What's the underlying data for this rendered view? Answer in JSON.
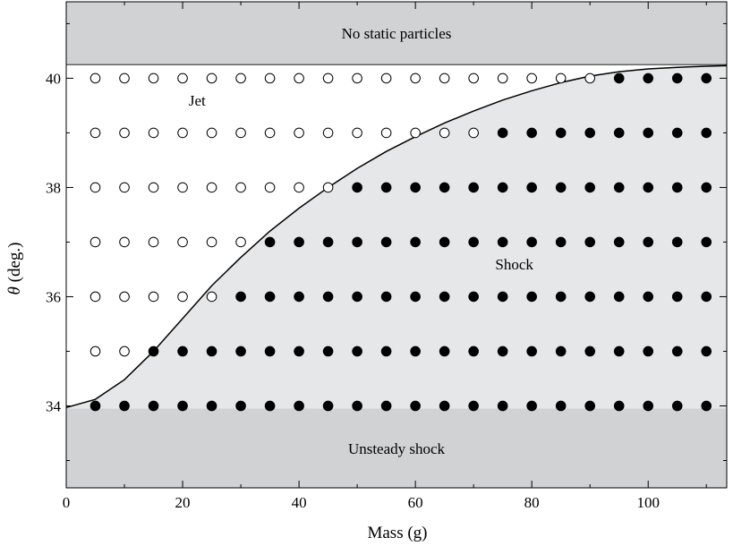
{
  "chart_data": {
    "type": "scatter",
    "title": "",
    "xlabel": "Mass (g)",
    "ylabel_symbol": "θ",
    "ylabel_rest": " (deg.)",
    "xlim": [
      0,
      113.5
    ],
    "ylim": [
      32.5,
      41.4
    ],
    "xticks": [
      0,
      20,
      40,
      60,
      80,
      100
    ],
    "yticks": [
      34,
      36,
      38,
      40
    ],
    "minor_xticks": [
      10,
      30,
      50,
      70,
      90,
      110
    ],
    "minor_yticks": [
      33,
      35,
      37,
      39,
      41
    ],
    "regions": [
      {
        "name": "No static particles",
        "ymin": 40.25,
        "ymax": 41.4,
        "color": "#d1d2d4"
      },
      {
        "name": "Unsteady shock",
        "ymin": 32.5,
        "ymax": 33.95,
        "color": "#d1d2d4"
      }
    ],
    "annotations": [
      {
        "text": "Jet",
        "x": 22.5,
        "y": 39.6
      },
      {
        "text": "Shock",
        "x": 77,
        "y": 36.6
      }
    ],
    "boundary_curve": {
      "description": "Jet/shock transition",
      "points": [
        [
          0,
          33.97
        ],
        [
          5,
          34.12
        ],
        [
          10,
          34.48
        ],
        [
          15,
          35.0
        ],
        [
          20,
          35.6
        ],
        [
          25,
          36.2
        ],
        [
          30,
          36.72
        ],
        [
          35,
          37.2
        ],
        [
          40,
          37.62
        ],
        [
          45,
          38.0
        ],
        [
          50,
          38.35
        ],
        [
          55,
          38.66
        ],
        [
          60,
          38.93
        ],
        [
          65,
          39.18
        ],
        [
          70,
          39.4
        ],
        [
          75,
          39.6
        ],
        [
          80,
          39.77
        ],
        [
          85,
          39.92
        ],
        [
          90,
          40.04
        ],
        [
          95,
          40.12
        ],
        [
          100,
          40.17
        ],
        [
          105,
          40.2
        ],
        [
          110,
          40.22
        ],
        [
          113.5,
          40.23
        ]
      ]
    },
    "series": [
      {
        "name": "Jet",
        "marker": "open-circle",
        "points": [
          [
            5,
            40
          ],
          [
            10,
            40
          ],
          [
            15,
            40
          ],
          [
            20,
            40
          ],
          [
            25,
            40
          ],
          [
            30,
            40
          ],
          [
            35,
            40
          ],
          [
            40,
            40
          ],
          [
            45,
            40
          ],
          [
            50,
            40
          ],
          [
            55,
            40
          ],
          [
            60,
            40
          ],
          [
            65,
            40
          ],
          [
            70,
            40
          ],
          [
            75,
            40
          ],
          [
            80,
            40
          ],
          [
            85,
            40
          ],
          [
            90,
            40
          ],
          [
            5,
            39
          ],
          [
            10,
            39
          ],
          [
            15,
            39
          ],
          [
            20,
            39
          ],
          [
            25,
            39
          ],
          [
            30,
            39
          ],
          [
            35,
            39
          ],
          [
            40,
            39
          ],
          [
            45,
            39
          ],
          [
            50,
            39
          ],
          [
            55,
            39
          ],
          [
            60,
            39
          ],
          [
            65,
            39
          ],
          [
            70,
            39
          ],
          [
            5,
            38
          ],
          [
            10,
            38
          ],
          [
            15,
            38
          ],
          [
            20,
            38
          ],
          [
            25,
            38
          ],
          [
            30,
            38
          ],
          [
            35,
            38
          ],
          [
            40,
            38
          ],
          [
            45,
            38
          ],
          [
            5,
            37
          ],
          [
            10,
            37
          ],
          [
            15,
            37
          ],
          [
            20,
            37
          ],
          [
            25,
            37
          ],
          [
            30,
            37
          ],
          [
            5,
            36
          ],
          [
            10,
            36
          ],
          [
            15,
            36
          ],
          [
            20,
            36
          ],
          [
            25,
            36
          ],
          [
            5,
            35
          ],
          [
            10,
            35
          ]
        ]
      },
      {
        "name": "Shock",
        "marker": "filled-circle",
        "points": [
          [
            95,
            40
          ],
          [
            100,
            40
          ],
          [
            105,
            40
          ],
          [
            110,
            40
          ],
          [
            75,
            39
          ],
          [
            80,
            39
          ],
          [
            85,
            39
          ],
          [
            90,
            39
          ],
          [
            95,
            39
          ],
          [
            100,
            39
          ],
          [
            105,
            39
          ],
          [
            110,
            39
          ],
          [
            50,
            38
          ],
          [
            55,
            38
          ],
          [
            60,
            38
          ],
          [
            65,
            38
          ],
          [
            70,
            38
          ],
          [
            75,
            38
          ],
          [
            80,
            38
          ],
          [
            85,
            38
          ],
          [
            90,
            38
          ],
          [
            95,
            38
          ],
          [
            100,
            38
          ],
          [
            105,
            38
          ],
          [
            110,
            38
          ],
          [
            35,
            37
          ],
          [
            40,
            37
          ],
          [
            45,
            37
          ],
          [
            50,
            37
          ],
          [
            55,
            37
          ],
          [
            60,
            37
          ],
          [
            65,
            37
          ],
          [
            70,
            37
          ],
          [
            75,
            37
          ],
          [
            80,
            37
          ],
          [
            85,
            37
          ],
          [
            90,
            37
          ],
          [
            95,
            37
          ],
          [
            100,
            37
          ],
          [
            105,
            37
          ],
          [
            110,
            37
          ],
          [
            30,
            36
          ],
          [
            35,
            36
          ],
          [
            40,
            36
          ],
          [
            45,
            36
          ],
          [
            50,
            36
          ],
          [
            55,
            36
          ],
          [
            60,
            36
          ],
          [
            65,
            36
          ],
          [
            70,
            36
          ],
          [
            75,
            36
          ],
          [
            80,
            36
          ],
          [
            85,
            36
          ],
          [
            90,
            36
          ],
          [
            95,
            36
          ],
          [
            100,
            36
          ],
          [
            105,
            36
          ],
          [
            110,
            36
          ],
          [
            15,
            35
          ],
          [
            20,
            35
          ],
          [
            25,
            35
          ],
          [
            30,
            35
          ],
          [
            35,
            35
          ],
          [
            40,
            35
          ],
          [
            45,
            35
          ],
          [
            50,
            35
          ],
          [
            55,
            35
          ],
          [
            60,
            35
          ],
          [
            65,
            35
          ],
          [
            70,
            35
          ],
          [
            75,
            35
          ],
          [
            80,
            35
          ],
          [
            85,
            35
          ],
          [
            90,
            35
          ],
          [
            95,
            35
          ],
          [
            100,
            35
          ],
          [
            105,
            35
          ],
          [
            110,
            35
          ],
          [
            5,
            34
          ],
          [
            10,
            34
          ],
          [
            15,
            34
          ],
          [
            20,
            34
          ],
          [
            25,
            34
          ],
          [
            30,
            34
          ],
          [
            35,
            34
          ],
          [
            40,
            34
          ],
          [
            45,
            34
          ],
          [
            50,
            34
          ],
          [
            55,
            34
          ],
          [
            60,
            34
          ],
          [
            65,
            34
          ],
          [
            70,
            34
          ],
          [
            75,
            34
          ],
          [
            80,
            34
          ],
          [
            85,
            34
          ],
          [
            90,
            34
          ],
          [
            95,
            34
          ],
          [
            100,
            34
          ],
          [
            105,
            34
          ],
          [
            110,
            34
          ]
        ]
      }
    ],
    "colors": {
      "region_gray": "#d1d2d4",
      "shock_fill": "#e6e7e8",
      "marker": "#000000",
      "boundary": "#000000"
    },
    "grid": false,
    "legend": "none"
  }
}
